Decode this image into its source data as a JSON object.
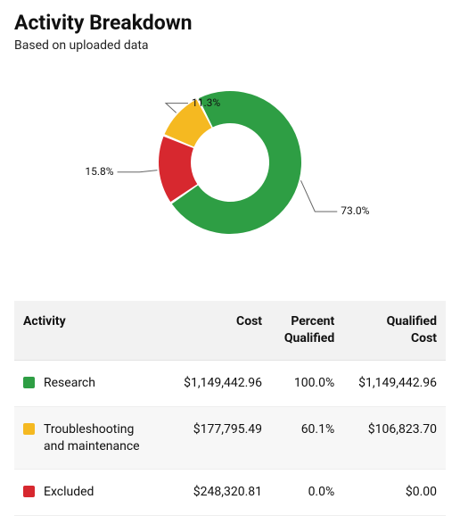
{
  "header": {
    "title": "Activity Breakdown",
    "subtitle": "Based on uploaded data"
  },
  "chart": {
    "type": "donut",
    "background_color": "#ffffff",
    "outer_radius": 80,
    "inner_radius": 44,
    "gap_deg": 2,
    "slices": [
      {
        "label": "73.0%",
        "value": 73.0,
        "color": "#2e9e44"
      },
      {
        "label": "15.8%",
        "value": 15.8,
        "color": "#d7282f"
      },
      {
        "label": "11.3%",
        "value": 11.3,
        "color": "#f5b921"
      }
    ],
    "label_fontsize": 12,
    "label_color": "#111111",
    "leader_color": "#666666"
  },
  "table": {
    "columns": [
      "Activity",
      "Cost",
      "Percent Qualified",
      "Qualified Cost"
    ],
    "rows": [
      {
        "swatch": "#2e9e44",
        "activity": "Research",
        "cost": "$1,149,442.96",
        "percent": "100.0%",
        "qualified": "$1,149,442.96"
      },
      {
        "swatch": "#f5b921",
        "activity": "Troubleshooting and maintenance",
        "cost": "$177,795.49",
        "percent": "60.1%",
        "qualified": "$106,823.70"
      },
      {
        "swatch": "#d7282f",
        "activity": "Excluded",
        "cost": "$248,320.81",
        "percent": "0.0%",
        "qualified": "$0.00"
      }
    ]
  }
}
